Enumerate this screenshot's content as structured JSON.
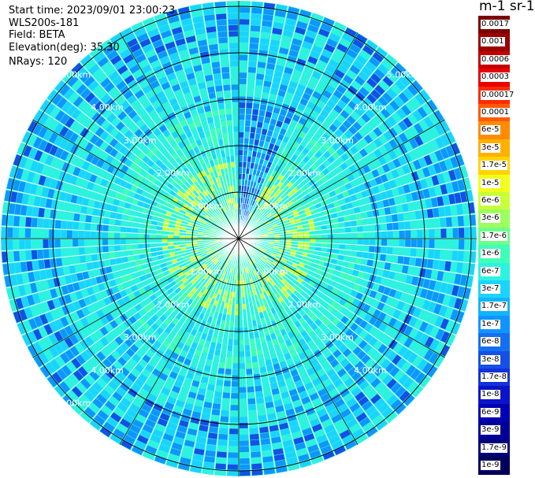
{
  "info": {
    "start_time": "Start time: 2023/09/01 23:00:23",
    "instrument": "WLS200s-181",
    "field": "Field: BETA",
    "elevation": "Elevation(deg): 35.30",
    "nrays": "NRays: 120"
  },
  "colorbar": {
    "unit": "m-1 sr-1",
    "labels": [
      "0.0017",
      "0.001",
      "0.0006",
      "0.0003",
      "0.00017",
      "0.0001",
      "6e-5",
      "3e-5",
      "1.7e-5",
      "1e-5",
      "6e-6",
      "3e-6",
      "1.7e-6",
      "1e-6",
      "6e-7",
      "3e-7",
      "1.7e-7",
      "1e-7",
      "6e-8",
      "3e-8",
      "1.7e-8",
      "1e-8",
      "6e-9",
      "3e-9",
      "1.7e-9",
      "1e-9"
    ],
    "colors": [
      "#7a0000",
      "#9a0000",
      "#c20000",
      "#e80000",
      "#ff2a00",
      "#ff5a00",
      "#ff8c00",
      "#ffb000",
      "#ffd400",
      "#f2ff1a",
      "#c8ff3a",
      "#9cff5e",
      "#6cff8a",
      "#40ffb8",
      "#2ef2e0",
      "#1ad4ff",
      "#10b4ff",
      "#1095ff",
      "#1470f0",
      "#1450e6",
      "#1432d8",
      "#0a14c8",
      "#0000b4",
      "#000096",
      "#000078",
      "#00005a"
    ]
  },
  "range_rings": [
    "1.00km",
    "2.00km",
    "3.00km",
    "4.00km",
    "5.00km"
  ],
  "palette": {
    "cyan": "#2ef2e0",
    "aqua": "#40ffb8",
    "sky": "#1ad4ff",
    "blue": "#1095ff",
    "deep_blue": "#1450e6",
    "green_yellow": "#c8ff3a",
    "yellow": "#f2ff1a"
  }
}
